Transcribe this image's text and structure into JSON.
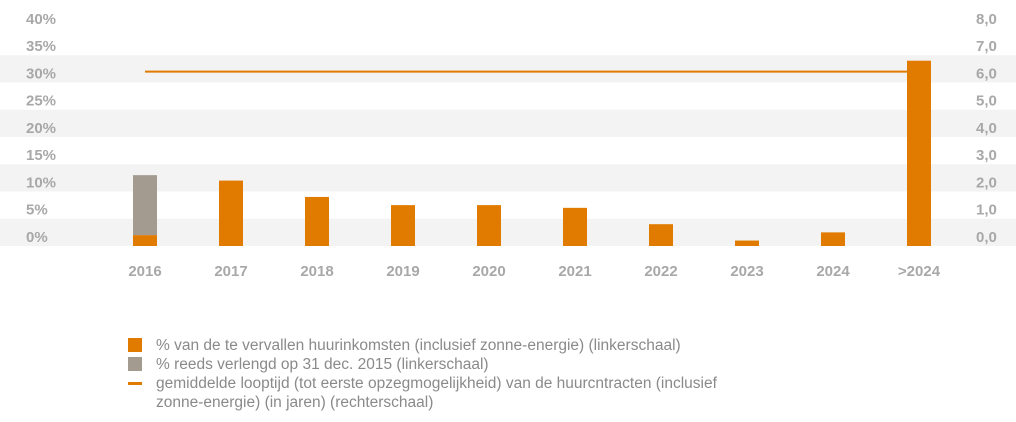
{
  "chart_data": {
    "type": "bar",
    "categories": [
      "2016",
      "2017",
      "2018",
      "2019",
      "2020",
      "2021",
      "2022",
      "2023",
      "2024",
      ">2024"
    ],
    "series": [
      {
        "name": "% van de te vervallen huurinkomsten (inclusief zonne-energie) (linkerschaal)",
        "color": "#e07b00",
        "values": [
          2,
          12,
          9,
          7.5,
          7.5,
          7,
          4,
          1,
          2.5,
          34
        ]
      },
      {
        "name": "% reeds verlengd op 31 dec. 2015 (linkerschaal)",
        "color": "#a39b8f",
        "values": [
          11,
          null,
          null,
          null,
          null,
          null,
          null,
          null,
          null,
          null
        ]
      },
      {
        "name": "gemiddelde looptijd (tot eerste opzegmogelijkheid) van de huurcntracten (inclusief zonne-energie) (in jaren) (rechterschaal)",
        "color": "#e07b00",
        "type": "line",
        "axis": "y2",
        "values": [
          6.4,
          6.4,
          6.4,
          6.4,
          6.4,
          6.4,
          6.4,
          6.4,
          6.4,
          6.4
        ]
      }
    ],
    "stacked": true,
    "ylim": [
      0,
      40
    ],
    "yticks": [
      {
        "value": 0,
        "label": "0%"
      },
      {
        "value": 5,
        "label": "5%"
      },
      {
        "value": 10,
        "label": "10%"
      },
      {
        "value": 15,
        "label": "15%"
      },
      {
        "value": 20,
        "label": "20%"
      },
      {
        "value": 25,
        "label": "25%"
      },
      {
        "value": 30,
        "label": "30%"
      },
      {
        "value": 35,
        "label": "35%"
      },
      {
        "value": 40,
        "label": "40%"
      }
    ],
    "y2lim": [
      0,
      8
    ],
    "y2ticks": [
      {
        "value": 0,
        "label": "0,0"
      },
      {
        "value": 1,
        "label": "1,0"
      },
      {
        "value": 2,
        "label": "2,0"
      },
      {
        "value": 3,
        "label": "3,0"
      },
      {
        "value": 4,
        "label": "4,0"
      },
      {
        "value": 5,
        "label": "5,0"
      },
      {
        "value": 6,
        "label": "6,0"
      },
      {
        "value": 7,
        "label": "7,0"
      },
      {
        "value": 8,
        "label": "8,0"
      }
    ],
    "legend": "bottom-left"
  }
}
